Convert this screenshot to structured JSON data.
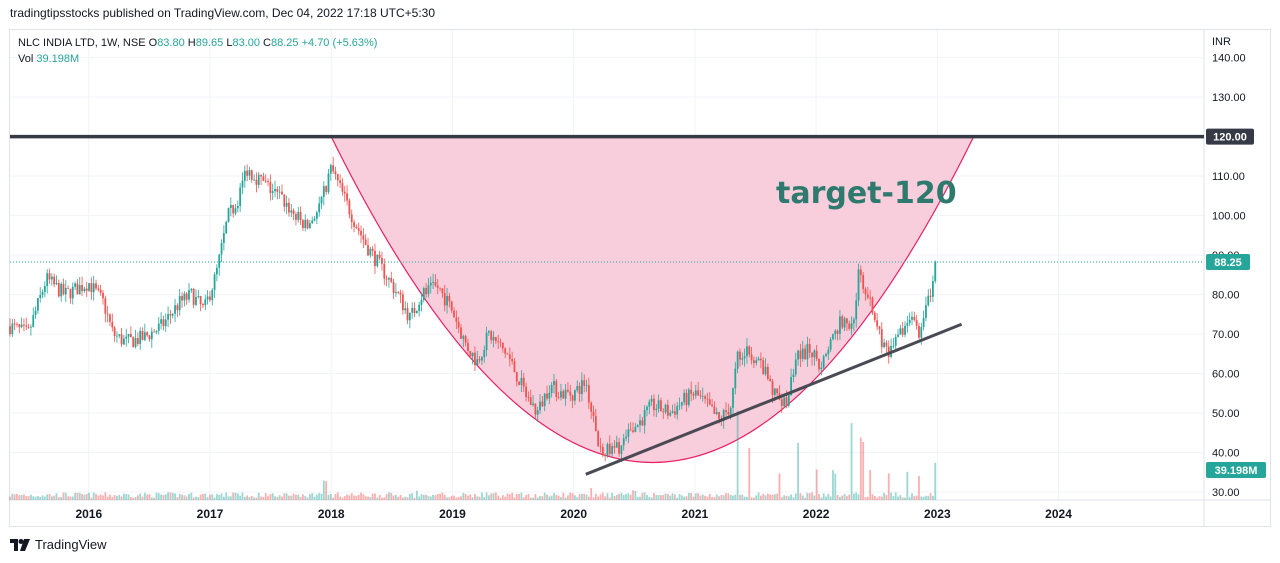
{
  "publisher_line": "tradingtipsstocks published on TradingView.com, Dec 04, 2022 17:18 UTC+5:30",
  "legend": {
    "symbol": "NLC INDIA LTD, 1W, NSE",
    "o_label": "O",
    "o": "83.80",
    "h_label": "H",
    "h": "89.65",
    "l_label": "L",
    "l": "83.00",
    "c_label": "C",
    "c": "88.25",
    "change": "+4.70 (+5.63%)",
    "vol_label": "Vol",
    "vol": "39.198M"
  },
  "footer": {
    "brand": "TradingView"
  },
  "chart_data": {
    "type": "candlestick",
    "currency": "INR",
    "y_range": [
      28,
      147
    ],
    "y_ticks": [
      "140.00",
      "130.00",
      "110.00",
      "100.00",
      "90.00",
      "80.00",
      "70.00",
      "60.00",
      "50.00",
      "40.00",
      "30.00"
    ],
    "x_ticks": [
      "2016",
      "2017",
      "2018",
      "2019",
      "2020",
      "2021",
      "2022",
      "2023",
      "2024"
    ],
    "x_range": [
      2015.35,
      2025.2
    ],
    "last_price": 88.25,
    "last_price_label": "88.25",
    "last_volume_label": "39.198M",
    "resistance": {
      "price": 120.0,
      "label": "120.00",
      "from": 2015.35,
      "to": 2025.2
    },
    "annotation": "target-120",
    "cup_curve": {
      "start": [
        2018.0,
        120
      ],
      "bottom": [
        2020.65,
        37.5
      ],
      "end": [
        2023.3,
        120
      ]
    },
    "trendline": {
      "from": [
        2020.1,
        34.5
      ],
      "to": [
        2023.2,
        72.5
      ]
    },
    "price_keypoints": [
      [
        2015.35,
        72
      ],
      [
        2015.5,
        70
      ],
      [
        2015.65,
        84
      ],
      [
        2015.8,
        80
      ],
      [
        2016.0,
        83
      ],
      [
        2016.12,
        78
      ],
      [
        2016.2,
        70
      ],
      [
        2016.3,
        68
      ],
      [
        2016.45,
        69
      ],
      [
        2016.6,
        72
      ],
      [
        2016.75,
        78
      ],
      [
        2016.85,
        80
      ],
      [
        2016.95,
        76
      ],
      [
        2017.05,
        85
      ],
      [
        2017.15,
        100
      ],
      [
        2017.22,
        103
      ],
      [
        2017.3,
        112
      ],
      [
        2017.45,
        108
      ],
      [
        2017.6,
        104
      ],
      [
        2017.7,
        100
      ],
      [
        2017.8,
        97
      ],
      [
        2017.9,
        102
      ],
      [
        2018.0,
        112
      ],
      [
        2018.1,
        105
      ],
      [
        2018.2,
        98
      ],
      [
        2018.3,
        92
      ],
      [
        2018.45,
        85
      ],
      [
        2018.55,
        80
      ],
      [
        2018.65,
        74
      ],
      [
        2018.75,
        80
      ],
      [
        2018.88,
        82
      ],
      [
        2019.0,
        76
      ],
      [
        2019.1,
        68
      ],
      [
        2019.2,
        63
      ],
      [
        2019.3,
        70
      ],
      [
        2019.45,
        65
      ],
      [
        2019.6,
        55
      ],
      [
        2019.7,
        50
      ],
      [
        2019.8,
        57
      ],
      [
        2019.9,
        55
      ],
      [
        2020.0,
        55
      ],
      [
        2020.1,
        58
      ],
      [
        2020.2,
        42
      ],
      [
        2020.3,
        40
      ],
      [
        2020.4,
        42
      ],
      [
        2020.5,
        46
      ],
      [
        2020.65,
        52
      ],
      [
        2020.8,
        50
      ],
      [
        2020.9,
        53
      ],
      [
        2021.0,
        55
      ],
      [
        2021.1,
        52
      ],
      [
        2021.2,
        48
      ],
      [
        2021.3,
        52
      ],
      [
        2021.35,
        64
      ],
      [
        2021.45,
        66
      ],
      [
        2021.55,
        62
      ],
      [
        2021.65,
        55
      ],
      [
        2021.75,
        52
      ],
      [
        2021.85,
        64
      ],
      [
        2021.95,
        66
      ],
      [
        2022.05,
        62
      ],
      [
        2022.1,
        67
      ],
      [
        2022.2,
        73
      ],
      [
        2022.3,
        72
      ],
      [
        2022.35,
        85
      ],
      [
        2022.42,
        80
      ],
      [
        2022.5,
        72
      ],
      [
        2022.6,
        64
      ],
      [
        2022.7,
        70
      ],
      [
        2022.8,
        76
      ],
      [
        2022.85,
        67
      ],
      [
        2022.9,
        76
      ],
      [
        2022.95,
        80
      ],
      [
        2022.99,
        88.25
      ]
    ],
    "volume_spikes": [
      [
        2017.2,
        4
      ],
      [
        2017.95,
        8
      ],
      [
        2018.7,
        5
      ],
      [
        2020.15,
        6
      ],
      [
        2020.5,
        5
      ],
      [
        2021.35,
        40
      ],
      [
        2021.45,
        22
      ],
      [
        2021.7,
        15
      ],
      [
        2021.85,
        28
      ],
      [
        2022.0,
        16
      ],
      [
        2022.15,
        14
      ],
      [
        2022.3,
        42
      ],
      [
        2022.38,
        32
      ],
      [
        2022.45,
        16
      ],
      [
        2022.6,
        12
      ],
      [
        2022.75,
        14
      ],
      [
        2022.85,
        10
      ],
      [
        2022.99,
        20
      ]
    ],
    "colors": {
      "up": "#26a69a",
      "down": "#ef5350",
      "cup_fill": "#f8c6d6",
      "cup_line": "#e91e63",
      "resistance": "#363a45",
      "trend": "#4a4a55",
      "tag_bg": "#26a69a",
      "tag_dark": "#363a45",
      "grid": "#f0f3fa"
    }
  }
}
